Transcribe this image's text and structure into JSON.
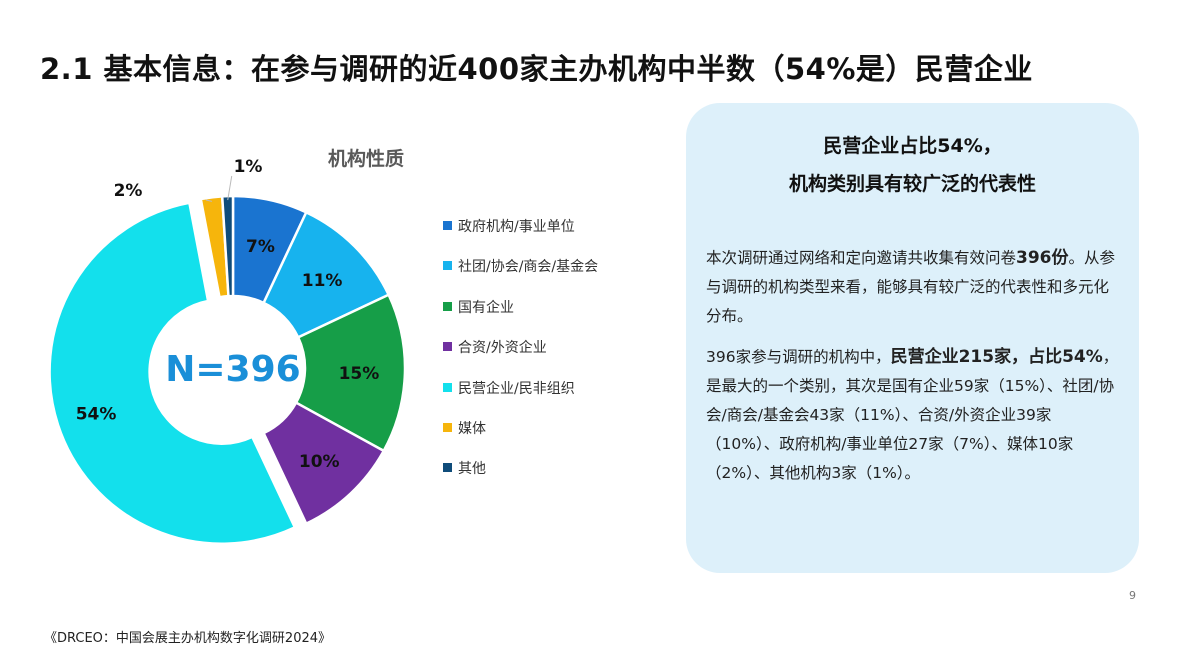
{
  "slide": {
    "title": "2.1 基本信息：在参与调研的近400家主办机构中半数（54%是）民营企业",
    "page_number": "9",
    "source": "《DRCEO：中国会展主办机构数字化调研2024》"
  },
  "chart_data": {
    "type": "pie",
    "title": "机构性质",
    "center_label": "N=396",
    "categories": [
      "政府机构/事业单位",
      "社团/协会/商会/基金会",
      "国有企业",
      "合资/外资企业",
      "民营企业/民非组织",
      "媒体",
      "其他"
    ],
    "values": [
      7,
      11,
      15,
      10,
      54,
      2,
      1
    ],
    "counts": [
      27,
      43,
      59,
      39,
      215,
      10,
      3
    ],
    "labels": [
      "7%",
      "11%",
      "15%",
      "10%",
      "54%",
      "2%",
      "1%"
    ],
    "colors": [
      "#1a74d0",
      "#17b3ee",
      "#169e48",
      "#7030a0",
      "#13e0ec",
      "#f6b50c",
      "#0f4c7a"
    ],
    "donut": true,
    "legend_position": "right"
  },
  "panel": {
    "heading_line1": "民营企业占比54%，",
    "heading_line2": "机构类别具有较广泛的代表性",
    "p1_text": "本次调研通过网络和定向邀请共收集有效问卷",
    "p1_bold": "396份",
    "p1_tail": "。从参与调研的机构类型来看，能够具有较广泛的代表性和多元化分布。",
    "p2_text": "396家参与调研的机构中，",
    "p2_bold": "民营企业215家，占比54%",
    "p2_tail": "，是最大的一个类别，其次是国有企业59家（15%）、社团/协会/商会/基金会43家（11%）、合资/外资企业39家（10%）、政府机构/事业单位27家（7%）、媒体10家（2%）、其他机构3家（1%）。"
  }
}
